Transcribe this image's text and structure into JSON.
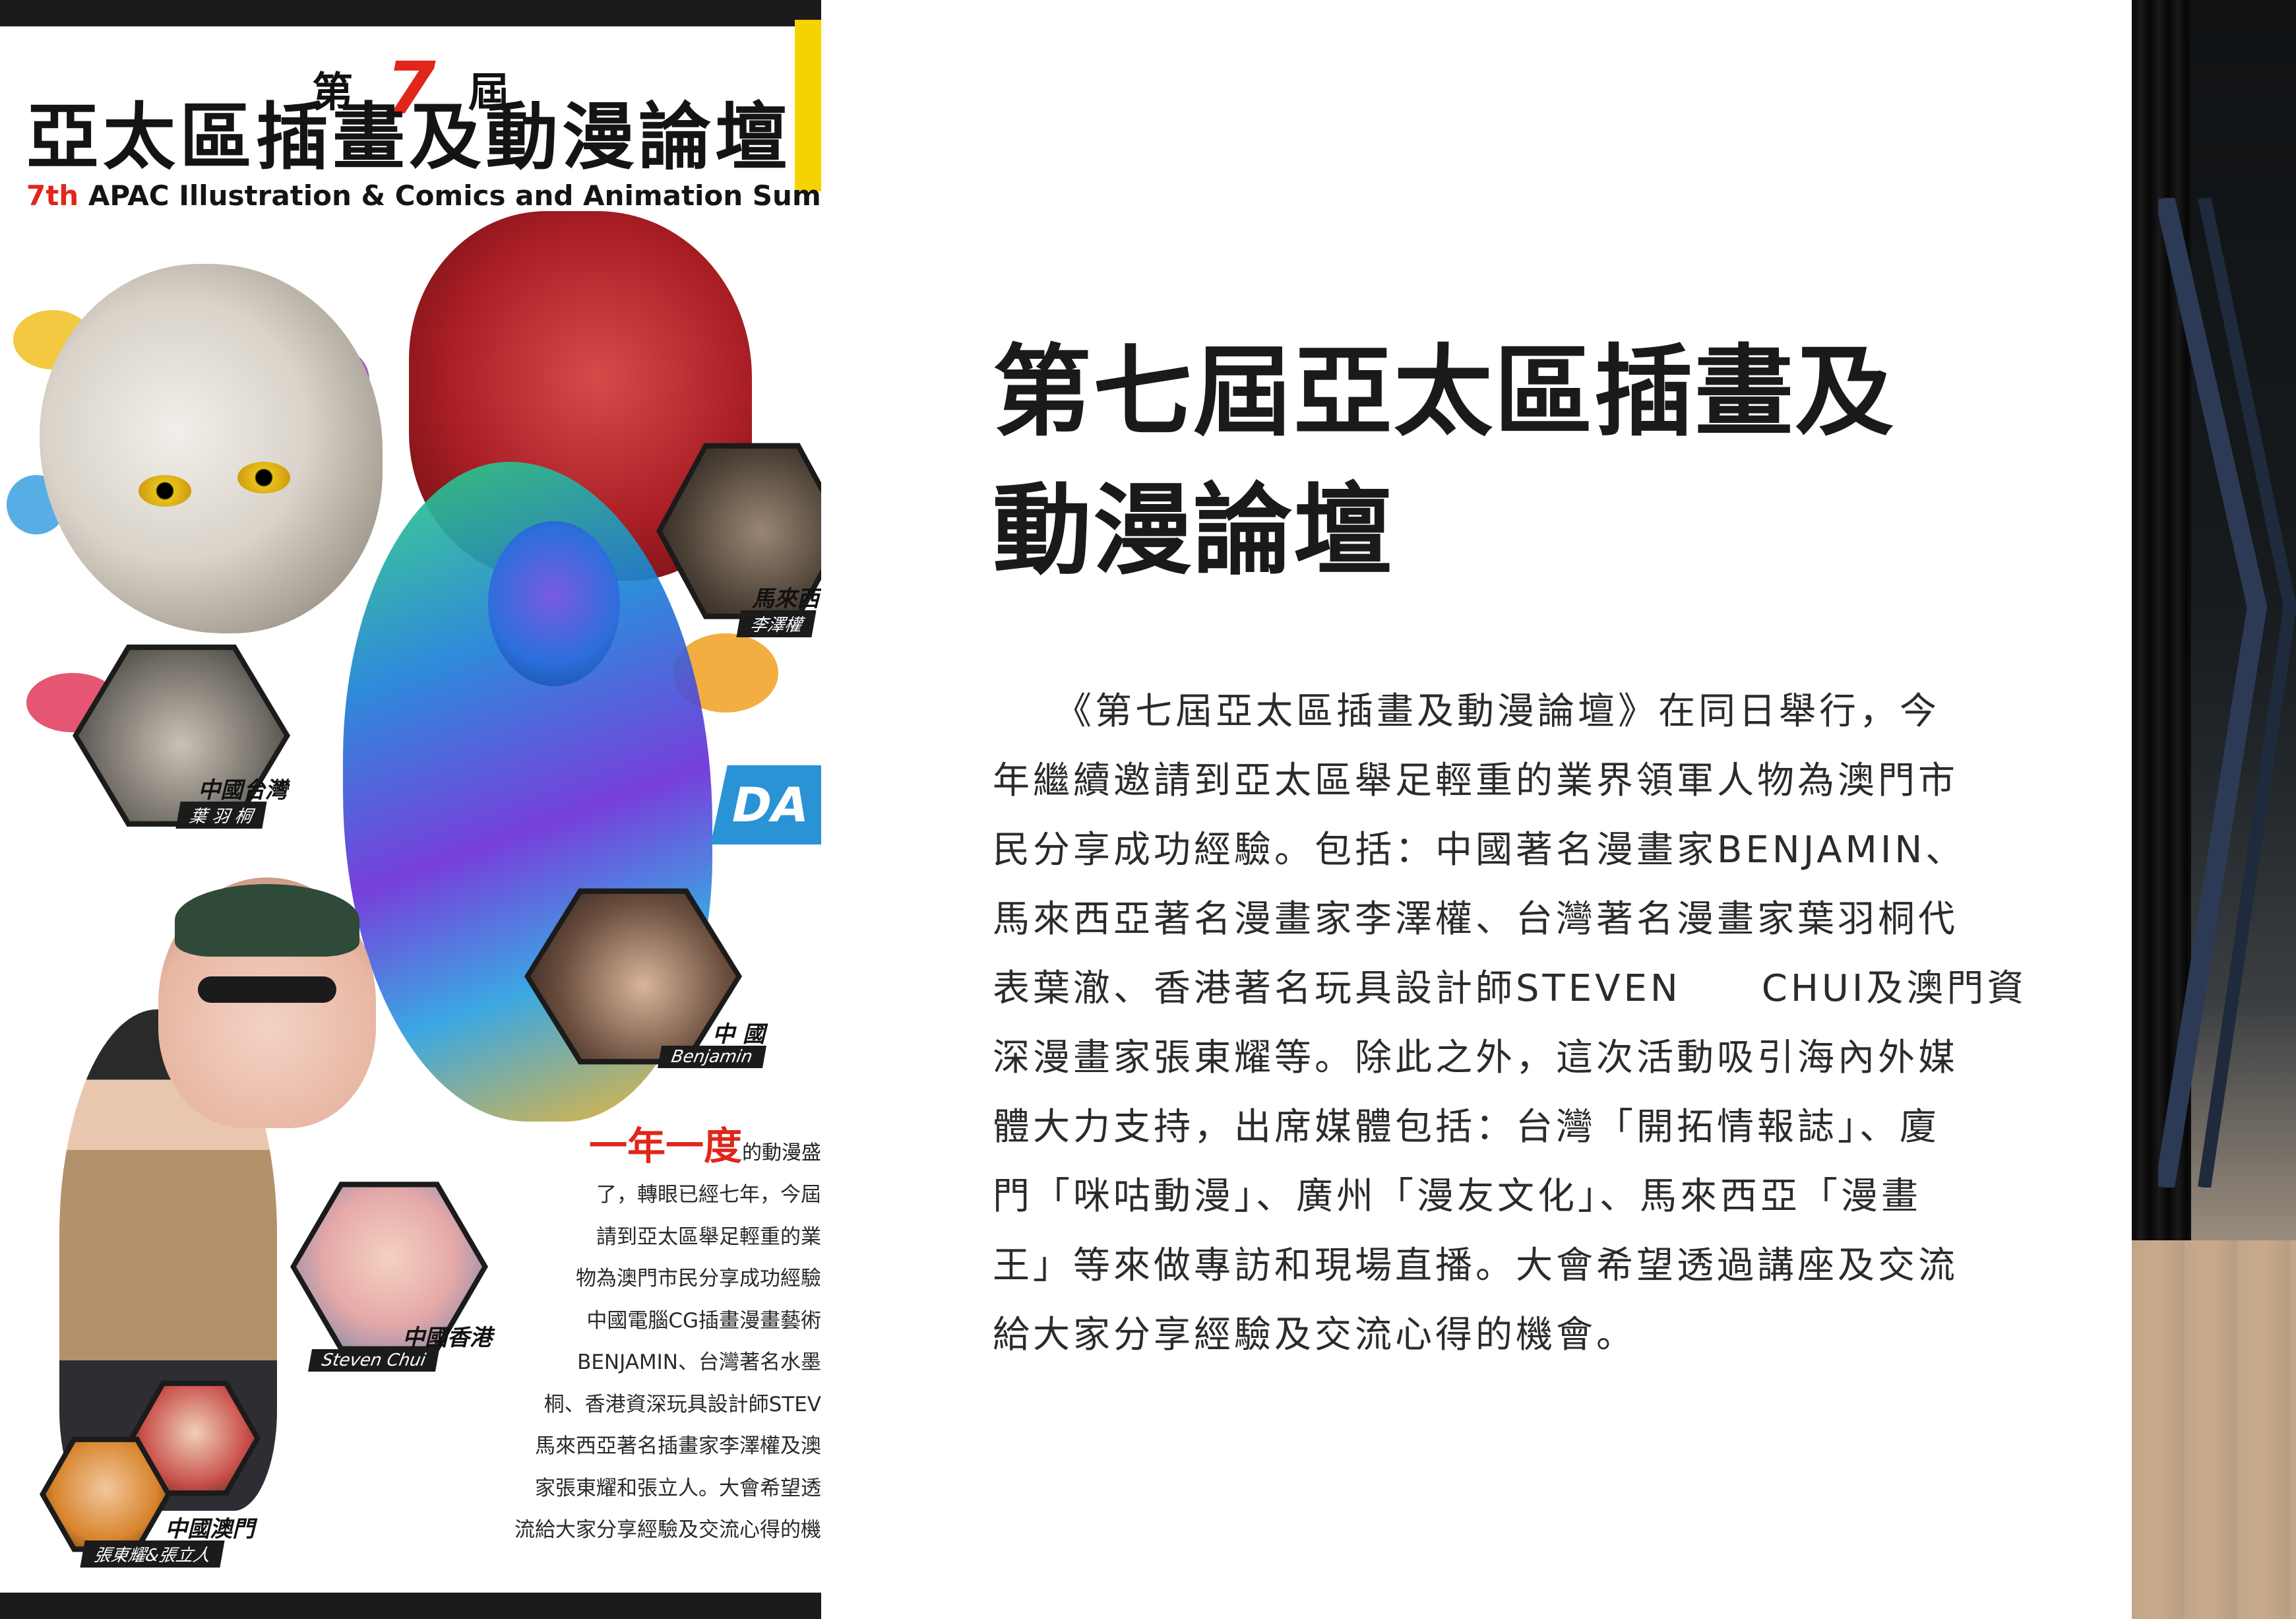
{
  "poster": {
    "edition_prefix": "第",
    "edition_number": "7",
    "edition_suffix": "屆",
    "title_cn": "亞太區插畫及動漫論壇",
    "title_en_num": "7th",
    "title_en_rest": " APAC Illustration & Comics and Animation Summit",
    "day_badge": "DA",
    "speakers": [
      {
        "region": "馬來西",
        "name": "李澤權"
      },
      {
        "region": "中國台灣",
        "name": "葉 羽 桐"
      },
      {
        "region": "中 國",
        "name": "Benjamin"
      },
      {
        "region": "中國香港",
        "name": "Steven Chui"
      },
      {
        "region": "中國澳門",
        "name": "張東耀&張立人"
      }
    ],
    "body_lead": "一年一度",
    "body_lead_tail": "的動漫盛",
    "body_lines": [
      "了，轉眼已經七年，今屆",
      "請到亞太區舉足輕重的業",
      "物為澳門市民分享成功經驗",
      "中國電腦CG插畫漫畫藝術",
      "BENJAMIN、台灣著名水墨",
      "桐、香港資深玩具設計師STEV",
      "馬來西亞著名插畫家李澤權及澳",
      "家張東耀和張立人。大會希望透",
      "流給大家分享經驗及交流心得的機"
    ]
  },
  "article": {
    "title_lines": [
      "第七屆亞太區插畫及",
      "動漫論壇"
    ],
    "body_lines": [
      "　　《第七屆亞太區插畫及動漫論壇》在同日舉行，今",
      "年繼續邀請到亞太區舉足輕重的業界領軍人物為澳門市",
      "民分享成功經驗。包括：中國著名漫畫家BENJAMIN、",
      "馬來西亞著名漫畫家李澤權、台灣著名漫畫家葉羽桐代",
      "表葉澈、香港著名玩具設計師STEVEN　　CHUI及澳門資",
      "深漫畫家張東耀等。除此之外，這次活動吸引海內外媒",
      "體大力支持，出席媒體包括：台灣「開拓情報誌」、廈",
      "門「咪咕動漫」、廣州「漫友文化」、馬來西亞「漫畫",
      "王」等來做專訪和現場直播。大會希望透過講座及交流",
      "給大家分享經驗及交流心得的機會。"
    ]
  },
  "colors": {
    "accent_red": "#e1261c",
    "ink": "#1a1a1a",
    "badge_blue": "#2a93d5",
    "yellow": "#f5d300"
  }
}
